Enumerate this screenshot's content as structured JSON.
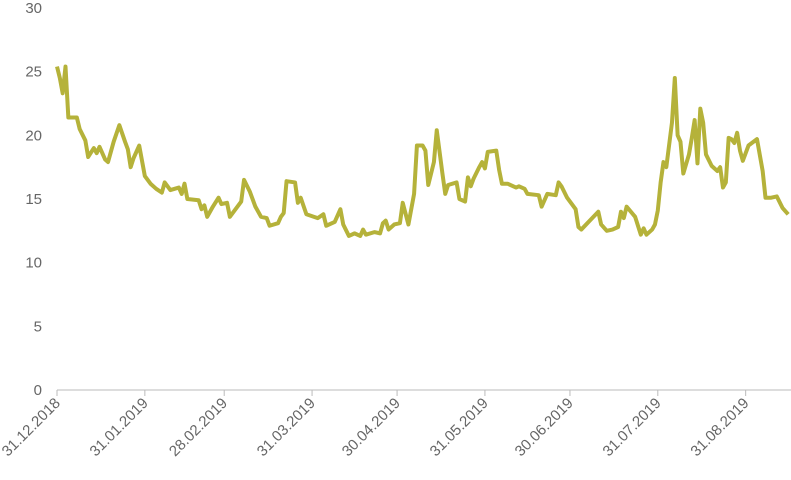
{
  "chart_data": {
    "type": "line",
    "x": [
      "31.12.2018",
      "01.01.2019",
      "02.01.2019",
      "03.01.2019",
      "04.01.2019",
      "07.01.2019",
      "08.01.2019",
      "10.01.2019",
      "11.01.2019",
      "13.01.2019",
      "14.01.2019",
      "15.01.2019",
      "17.01.2019",
      "18.01.2019",
      "20.01.2019",
      "22.01.2019",
      "24.01.2019",
      "25.01.2019",
      "26.01.2019",
      "27.01.2019",
      "29.01.2019",
      "31.01.2019",
      "02.02.2019",
      "04.02.2019",
      "06.02.2019",
      "07.02.2019",
      "09.02.2019",
      "12.02.2019",
      "13.02.2019",
      "14.02.2019",
      "15.02.2019",
      "19.02.2019",
      "20.02.2019",
      "21.02.2019",
      "22.02.2019",
      "24.02.2019",
      "26.02.2019",
      "27.02.2019",
      "01.03.2019",
      "02.03.2019",
      "04.03.2019",
      "06.03.2019",
      "07.03.2019",
      "09.03.2019",
      "11.03.2019",
      "13.03.2019",
      "15.03.2019",
      "16.03.2019",
      "19.03.2019",
      "20.03.2019",
      "21.03.2019",
      "22.03.2019",
      "25.03.2019",
      "26.03.2019",
      "27.03.2019",
      "29.03.2019",
      "02.04.2019",
      "04.04.2019",
      "05.04.2019",
      "08.04.2019",
      "10.04.2019",
      "11.04.2019",
      "13.04.2019",
      "15.04.2019",
      "17.04.2019",
      "18.04.2019",
      "19.04.2019",
      "22.04.2019",
      "24.04.2019",
      "25.04.2019",
      "26.04.2019",
      "27.04.2019",
      "29.04.2019",
      "01.05.2019",
      "02.05.2019",
      "04.05.2019",
      "06.05.2019",
      "07.05.2019",
      "09.05.2019",
      "10.05.2019",
      "11.05.2019",
      "13.05.2019",
      "14.05.2019",
      "16.05.2019",
      "17.05.2019",
      "18.05.2019",
      "21.05.2019",
      "22.05.2019",
      "24.05.2019",
      "25.05.2019",
      "26.05.2019",
      "27.05.2019",
      "29.05.2019",
      "30.05.2019",
      "31.05.2019",
      "01.06.2019",
      "04.06.2019",
      "05.06.2019",
      "06.06.2019",
      "08.06.2019",
      "11.06.2019",
      "12.06.2019",
      "14.06.2019",
      "15.06.2019",
      "19.06.2019",
      "20.06.2019",
      "22.06.2019",
      "25.06.2019",
      "26.06.2019",
      "27.06.2019",
      "29.06.2019",
      "02.07.2019",
      "03.07.2019",
      "04.07.2019",
      "07.07.2019",
      "10.07.2019",
      "11.07.2019",
      "13.07.2019",
      "15.07.2019",
      "17.07.2019",
      "18.07.2019",
      "19.07.2019",
      "20.07.2019",
      "23.07.2019",
      "25.07.2019",
      "26.07.2019",
      "27.07.2019",
      "29.07.2019",
      "30.07.2019",
      "31.07.2019",
      "01.08.2019",
      "02.08.2019",
      "03.08.2019",
      "05.08.2019",
      "06.08.2019",
      "07.08.2019",
      "08.08.2019",
      "09.08.2019",
      "11.08.2019",
      "12.08.2019",
      "13.08.2019",
      "14.08.2019",
      "15.08.2019",
      "16.08.2019",
      "17.08.2019",
      "19.08.2019",
      "21.08.2019",
      "22.08.2019",
      "23.08.2019",
      "24.08.2019",
      "25.08.2019",
      "26.08.2019",
      "27.08.2019",
      "28.08.2019",
      "29.08.2019",
      "30.08.2019",
      "01.09.2019",
      "04.09.2019",
      "06.09.2019",
      "07.09.2019",
      "09.09.2019",
      "11.09.2019",
      "13.09.2019",
      "15.09.2019"
    ],
    "series": [
      {
        "color": "#b5b23a",
        "values": [
          25.4,
          24.5,
          23.3,
          25.4,
          21.4,
          21.4,
          20.5,
          19.6,
          18.3,
          19.0,
          18.6,
          19.1,
          18.1,
          17.9,
          19.5,
          20.8,
          19.5,
          18.9,
          17.5,
          18.2,
          19.2,
          16.8,
          16.2,
          15.8,
          15.5,
          16.3,
          15.7,
          15.9,
          15.4,
          16.2,
          15.0,
          14.9,
          14.2,
          14.5,
          13.6,
          14.4,
          15.1,
          14.6,
          14.7,
          13.6,
          14.2,
          14.8,
          16.5,
          15.6,
          14.4,
          13.6,
          13.5,
          12.9,
          13.1,
          13.6,
          13.9,
          16.4,
          16.3,
          14.7,
          15.1,
          13.8,
          13.5,
          13.8,
          12.9,
          13.2,
          14.2,
          13.0,
          12.1,
          12.3,
          12.1,
          12.6,
          12.2,
          12.4,
          12.3,
          13.1,
          13.3,
          12.6,
          13.0,
          13.1,
          14.7,
          13.0,
          15.4,
          19.2,
          19.2,
          18.8,
          16.1,
          17.9,
          20.4,
          17.0,
          15.4,
          16.1,
          16.3,
          15.0,
          14.8,
          16.7,
          16.0,
          16.6,
          17.5,
          17.9,
          17.4,
          18.7,
          18.8,
          17.3,
          16.2,
          16.2,
          15.9,
          16.0,
          15.8,
          15.4,
          15.3,
          14.4,
          15.4,
          15.3,
          16.3,
          16.0,
          15.1,
          14.2,
          12.8,
          12.6,
          13.3,
          14.0,
          13.0,
          12.5,
          12.6,
          12.8,
          14.0,
          13.5,
          14.4,
          13.6,
          12.2,
          12.7,
          12.2,
          12.6,
          13.0,
          14.1,
          16.3,
          17.9,
          17.5,
          21.0,
          24.5,
          20.0,
          19.5,
          17.0,
          18.5,
          19.8,
          21.2,
          17.8,
          22.1,
          21.0,
          18.5,
          17.6,
          17.2,
          17.5,
          15.9,
          16.3,
          19.8,
          19.7,
          19.4,
          20.2,
          18.8,
          18.0,
          19.2,
          19.7,
          17.2,
          15.1,
          15.1,
          15.2,
          14.3,
          13.8
        ]
      }
    ],
    "xlim": [
      "31.12.2018",
      "16.09.2019"
    ],
    "xticks": [
      "31.12.2018",
      "31.01.2019",
      "28.02.2019",
      "31.03.2019",
      "30.04.2019",
      "31.05.2019",
      "30.06.2019",
      "31.07.2019",
      "31.08.2019"
    ],
    "ylim": [
      0,
      30
    ],
    "yticks": [
      0,
      5,
      10,
      15,
      20,
      25,
      30
    ],
    "grid": false
  }
}
